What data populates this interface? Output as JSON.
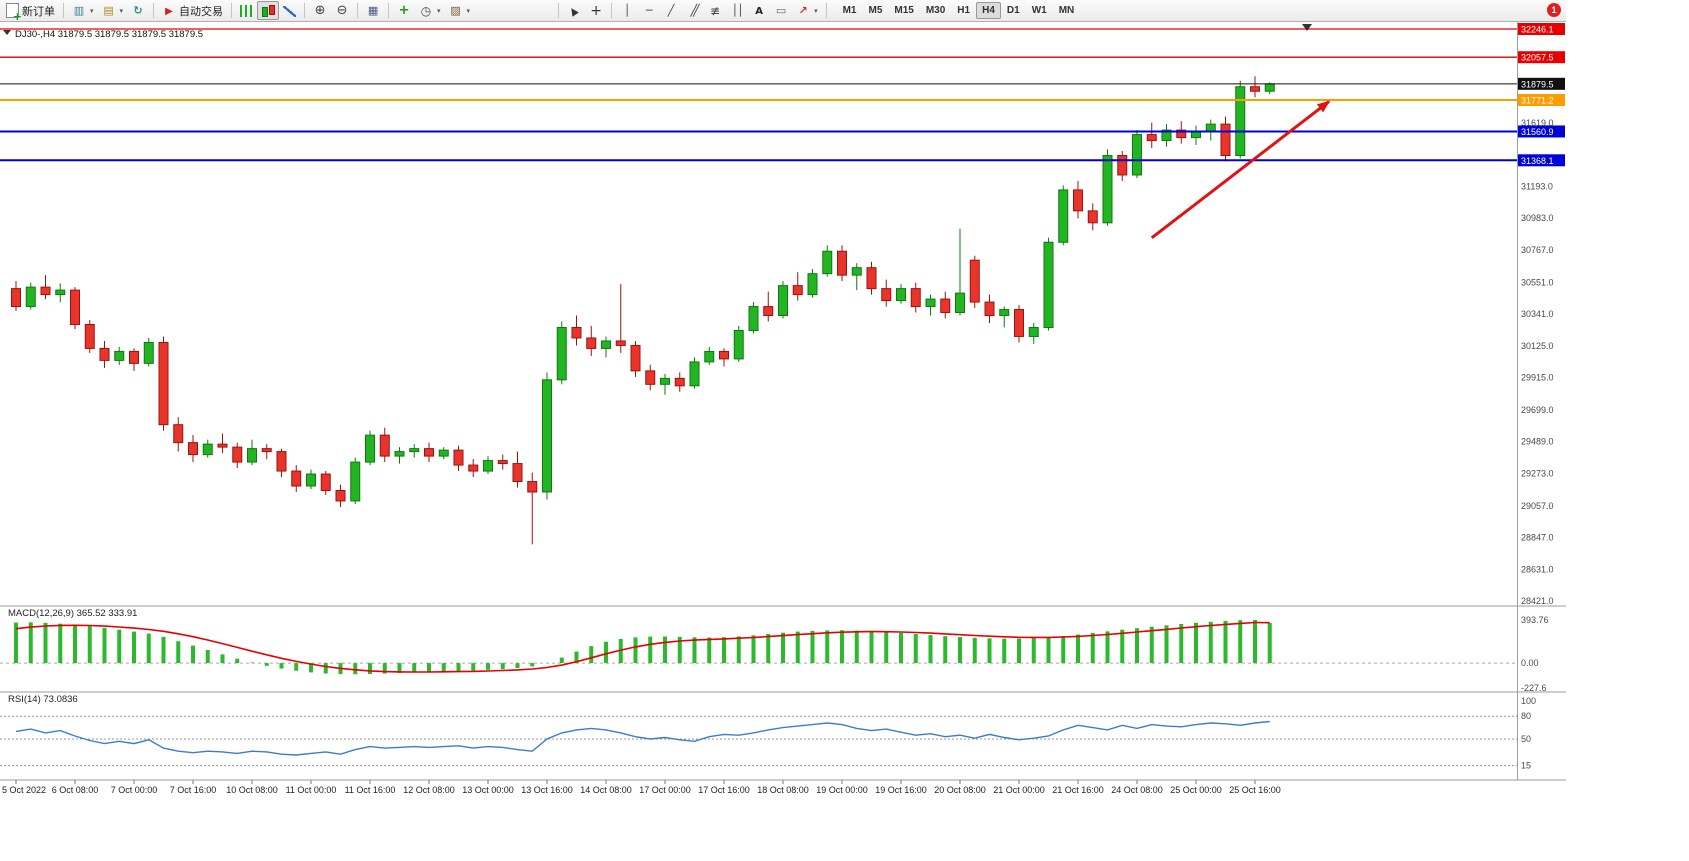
{
  "toolbar": {
    "button_groups": [
      {
        "buttons": [
          {
            "name": "new-order",
            "icon": "new-order",
            "label": "新订单"
          }
        ]
      },
      {
        "buttons": [
          {
            "name": "new-chart",
            "icon": "new-chart",
            "dropdown": true
          },
          {
            "name": "profiles",
            "icon": "profiles",
            "dropdown": true
          },
          {
            "name": "refresh",
            "icon": "refresh"
          }
        ]
      },
      {
        "buttons": [
          {
            "name": "autotrading",
            "icon": "autotrading",
            "label": "自动交易"
          }
        ]
      },
      {
        "buttons": [
          {
            "name": "bar-chart",
            "icon": "bars"
          },
          {
            "name": "candlestick-chart",
            "icon": "candles",
            "active": true
          },
          {
            "name": "line-chart",
            "icon": "line"
          }
        ]
      },
      {
        "buttons": [
          {
            "name": "zoom-in",
            "icon": "zoom-in"
          },
          {
            "name": "zoom-out",
            "icon": "zoom-out"
          }
        ]
      },
      {
        "buttons": [
          {
            "name": "tile-windows",
            "icon": "tile"
          }
        ]
      },
      {
        "buttons": [
          {
            "name": "indicators",
            "icon": "indicators"
          },
          {
            "name": "periods",
            "icon": "periods",
            "dropdown": true
          },
          {
            "name": "templates",
            "icon": "templates",
            "dropdown": true
          }
        ]
      },
      {
        "spacer": 80
      },
      {
        "buttons": [
          {
            "name": "cursor",
            "icon": "cursor"
          },
          {
            "name": "crosshair",
            "icon": "crosshair"
          }
        ]
      },
      {
        "buttons": [
          {
            "name": "vertical-line",
            "icon": "vline"
          },
          {
            "name": "horizontal-line",
            "icon": "hline"
          },
          {
            "name": "trendline",
            "icon": "trendline"
          },
          {
            "name": "equidistant-channel",
            "icon": "channel"
          },
          {
            "name": "fibonacci-retracement",
            "icon": "fibonacci"
          },
          {
            "name": "cycle-lines",
            "icon": "cycles"
          },
          {
            "name": "text",
            "icon": "text"
          },
          {
            "name": "text-label",
            "icon": "label"
          },
          {
            "name": "arrows",
            "icon": "arrows",
            "dropdown": true
          }
        ]
      }
    ],
    "timeframes": [
      "M1",
      "M5",
      "M15",
      "M30",
      "H1",
      "H4",
      "D1",
      "W1",
      "MN"
    ],
    "active_timeframe": "H4",
    "notification_count": "1"
  },
  "chart": {
    "title": "DJ30-,H4 31879.5 31879.5 31879.5 31879.5",
    "symbol": "DJ30-",
    "period": "H4",
    "open": "31879.5",
    "high": "31879.5",
    "low": "31879.5",
    "close": "31879.5"
  },
  "chart_data": {
    "type": "candlestick",
    "symbol": "DJ30-",
    "timeframe": "H4",
    "label_every_n_candles": 4,
    "time_labels": [
      "5 Oct 2022",
      "6 Oct 08:00",
      "7 Oct 00:00",
      "7 Oct 16:00",
      "10 Oct 08:00",
      "11 Oct 00:00",
      "11 Oct 16:00",
      "12 Oct 08:00",
      "13 Oct 00:00",
      "13 Oct 16:00",
      "14 Oct 08:00",
      "17 Oct 00:00",
      "17 Oct 16:00",
      "18 Oct 08:00",
      "19 Oct 00:00",
      "19 Oct 16:00",
      "20 Oct 08:00",
      "21 Oct 00:00",
      "21 Oct 16:00",
      "24 Oct 08:00",
      "25 Oct 00:00",
      "25 Oct 16:00"
    ],
    "price_axis": {
      "top_price": 32246.1,
      "bottom_price": 28421.0,
      "scale_labels": [
        31619.0,
        31193.0,
        30983.0,
        30767.0,
        30551.0,
        30341.0,
        30125.0,
        29915.0,
        29699.0,
        29489.0,
        29273.0,
        29057.0,
        28847.0,
        28631.0,
        28421.0
      ]
    },
    "horizontal_lines": [
      {
        "price": 32246.1,
        "color": "#e60000",
        "label": "32246.1",
        "width": 1.3
      },
      {
        "price": 32057.5,
        "color": "#e60000",
        "label": "32057.5",
        "width": 1.3
      },
      {
        "price": 31879.5,
        "color": "#101010",
        "label": "31879.5",
        "width": 1,
        "role": "current-price"
      },
      {
        "price": 31771.2,
        "color": "#ff9d00",
        "label": "31771.2",
        "width": 2
      },
      {
        "price": 31560.9,
        "color": "#0000d8",
        "label": "31560.9",
        "width": 2
      },
      {
        "price": 31368.1,
        "color": "#0000d8",
        "label": "31368.1",
        "width": 2
      }
    ],
    "arrow_annotation": {
      "from_candle": 77,
      "from_price": 30850,
      "to_candle": 89,
      "to_price": 31760,
      "color": "#e11212"
    },
    "candles_ohlc": [
      [
        30510,
        30560,
        30360,
        30390
      ],
      [
        30390,
        30550,
        30370,
        30520
      ],
      [
        30520,
        30600,
        30440,
        30470
      ],
      [
        30470,
        30545,
        30420,
        30500
      ],
      [
        30500,
        30520,
        30240,
        30270
      ],
      [
        30270,
        30300,
        30080,
        30110
      ],
      [
        30110,
        30160,
        29980,
        30030
      ],
      [
        30030,
        30120,
        30000,
        30090
      ],
      [
        30090,
        30110,
        29960,
        30010
      ],
      [
        30010,
        30180,
        29990,
        30150
      ],
      [
        30150,
        30190,
        29560,
        29600
      ],
      [
        29600,
        29650,
        29420,
        29480
      ],
      [
        29480,
        29530,
        29350,
        29400
      ],
      [
        29400,
        29500,
        29380,
        29470
      ],
      [
        29470,
        29540,
        29410,
        29450
      ],
      [
        29450,
        29480,
        29310,
        29350
      ],
      [
        29350,
        29500,
        29330,
        29440
      ],
      [
        29440,
        29470,
        29370,
        29420
      ],
      [
        29420,
        29440,
        29250,
        29290
      ],
      [
        29290,
        29330,
        29150,
        29190
      ],
      [
        29190,
        29300,
        29170,
        29270
      ],
      [
        29270,
        29290,
        29130,
        29160
      ],
      [
        29160,
        29200,
        29050,
        29090
      ],
      [
        29090,
        29380,
        29070,
        29350
      ],
      [
        29350,
        29560,
        29330,
        29530
      ],
      [
        29530,
        29580,
        29350,
        29390
      ],
      [
        29390,
        29450,
        29340,
        29420
      ],
      [
        29420,
        29470,
        29380,
        29440
      ],
      [
        29440,
        29480,
        29350,
        29390
      ],
      [
        29390,
        29450,
        29370,
        29430
      ],
      [
        29430,
        29460,
        29290,
        29330
      ],
      [
        29330,
        29370,
        29250,
        29290
      ],
      [
        29290,
        29390,
        29270,
        29360
      ],
      [
        29360,
        29400,
        29300,
        29340
      ],
      [
        29340,
        29420,
        29180,
        29220
      ],
      [
        29220,
        29280,
        28800,
        29150
      ],
      [
        29150,
        29950,
        29100,
        29900
      ],
      [
        29900,
        30290,
        29870,
        30250
      ],
      [
        30250,
        30330,
        30130,
        30180
      ],
      [
        30180,
        30260,
        30060,
        30110
      ],
      [
        30110,
        30190,
        30050,
        30160
      ],
      [
        30160,
        30540,
        30080,
        30130
      ],
      [
        30130,
        30160,
        29920,
        29960
      ],
      [
        29960,
        30000,
        29830,
        29870
      ],
      [
        29870,
        29940,
        29800,
        29910
      ],
      [
        29910,
        29950,
        29820,
        29860
      ],
      [
        29860,
        30050,
        29840,
        30020
      ],
      [
        30020,
        30120,
        30000,
        30090
      ],
      [
        30090,
        30110,
        29990,
        30040
      ],
      [
        30040,
        30260,
        30020,
        30230
      ],
      [
        30230,
        30420,
        30210,
        30390
      ],
      [
        30390,
        30490,
        30290,
        30330
      ],
      [
        30330,
        30560,
        30310,
        30530
      ],
      [
        30530,
        30620,
        30430,
        30470
      ],
      [
        30470,
        30640,
        30450,
        30610
      ],
      [
        30610,
        30800,
        30590,
        30760
      ],
      [
        30760,
        30800,
        30560,
        30600
      ],
      [
        30600,
        30680,
        30500,
        30650
      ],
      [
        30650,
        30690,
        30470,
        30510
      ],
      [
        30510,
        30570,
        30390,
        30430
      ],
      [
        30430,
        30540,
        30410,
        30510
      ],
      [
        30510,
        30550,
        30350,
        30390
      ],
      [
        30390,
        30470,
        30330,
        30440
      ],
      [
        30440,
        30490,
        30310,
        30350
      ],
      [
        30350,
        30910,
        30330,
        30480
      ],
      [
        30700,
        30730,
        30380,
        30420
      ],
      [
        30420,
        30470,
        30280,
        30330
      ],
      [
        30330,
        30390,
        30250,
        30370
      ],
      [
        30370,
        30400,
        30150,
        30190
      ],
      [
        30190,
        30280,
        30140,
        30250
      ],
      [
        30250,
        30850,
        30230,
        30820
      ],
      [
        30820,
        31200,
        30800,
        31170
      ],
      [
        31170,
        31230,
        30980,
        31030
      ],
      [
        31030,
        31080,
        30900,
        30950
      ],
      [
        30950,
        31440,
        30930,
        31400
      ],
      [
        31400,
        31430,
        31230,
        31270
      ],
      [
        31270,
        31570,
        31250,
        31540
      ],
      [
        31540,
        31620,
        31450,
        31500
      ],
      [
        31500,
        31610,
        31460,
        31570
      ],
      [
        31570,
        31630,
        31480,
        31520
      ],
      [
        31520,
        31600,
        31470,
        31560
      ],
      [
        31560,
        31640,
        31500,
        31610
      ],
      [
        31610,
        31660,
        31360,
        31400
      ],
      [
        31400,
        31900,
        31380,
        31860
      ],
      [
        31860,
        31930,
        31790,
        31830
      ],
      [
        31830,
        31890,
        31810,
        31879.5
      ]
    ],
    "macd": {
      "label": "MACD(12,26,9)",
      "value_main": "365.52",
      "value_signal": "333.91",
      "scale_labels": [
        "393.76",
        "0.00",
        "-227.6"
      ],
      "scale_max": 393.76,
      "scale_min": -227.6,
      "histogram": [
        370,
        372,
        368,
        360,
        350,
        338,
        322,
        305,
        288,
        270,
        240,
        200,
        160,
        120,
        80,
        40,
        5,
        -25,
        -50,
        -70,
        -85,
        -95,
        -100,
        -102,
        -100,
        -96,
        -90,
        -85,
        -80,
        -76,
        -72,
        -68,
        -62,
        -55,
        -45,
        -30,
        0,
        50,
        105,
        155,
        195,
        220,
        235,
        242,
        243,
        240,
        236,
        234,
        237,
        244,
        254,
        266,
        278,
        288,
        295,
        299,
        300,
        297,
        292,
        285,
        276,
        266,
        256,
        246,
        238,
        231,
        226,
        223,
        224,
        229,
        237,
        248,
        261,
        275,
        290,
        305,
        319,
        332,
        345,
        357,
        368,
        377,
        385,
        391,
        393.76,
        365.52
      ]
    },
    "rsi": {
      "label": "RSI(14)",
      "value": "73.0836",
      "levels": [
        80,
        50,
        15
      ],
      "scale_labels": [
        "100",
        "80",
        "50",
        "15"
      ],
      "values": [
        60,
        63,
        58,
        61,
        54,
        48,
        44,
        47,
        44,
        49,
        38,
        34,
        32,
        34,
        33,
        31,
        34,
        33,
        30,
        29,
        31,
        33,
        30,
        36,
        40,
        38,
        39,
        40,
        39,
        40,
        41,
        38,
        40,
        39,
        36,
        34,
        50,
        58,
        62,
        64,
        62,
        58,
        53,
        50,
        52,
        49,
        47,
        53,
        56,
        55,
        58,
        62,
        65,
        67,
        69,
        71,
        69,
        64,
        61,
        63,
        59,
        55,
        57,
        53,
        55,
        51,
        56,
        52,
        49,
        51,
        54,
        62,
        68,
        65,
        62,
        68,
        64,
        69,
        67,
        66,
        69,
        71,
        70,
        68,
        71,
        73.0836
      ]
    },
    "colors": {
      "up_fill": "#22b422",
      "up_stroke": "#0e7a0e",
      "down_fill": "#e8352c",
      "down_stroke": "#9e120c",
      "macd_hist": "#2db92d",
      "macd_signal": "#e60000",
      "rsi_line": "#3b7dc8"
    }
  }
}
